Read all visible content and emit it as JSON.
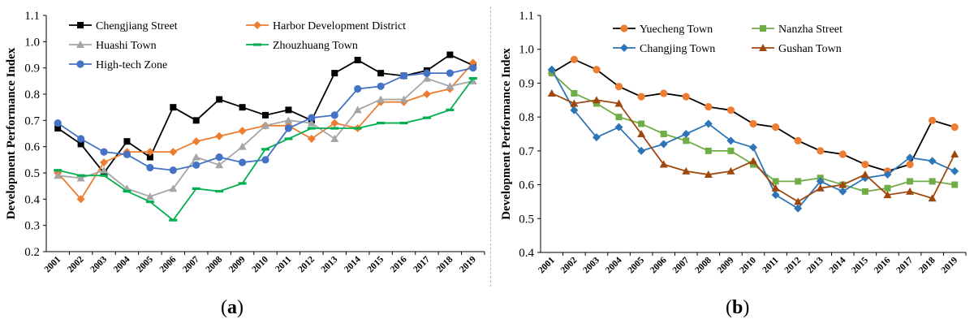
{
  "chart_data": [
    {
      "type": "line",
      "ylabel": "Development Performance Index",
      "ylim": [
        0.2,
        1.1
      ],
      "ystep": 0.1,
      "categories": [
        "2001",
        "2002",
        "2003",
        "2004",
        "2005",
        "2006",
        "2007",
        "2008",
        "2009",
        "2010",
        "2011",
        "2012",
        "2013",
        "2014",
        "2015",
        "2016",
        "2017",
        "2018",
        "2019"
      ],
      "legend_placement": "top-left, two columns",
      "series": [
        {
          "name": "Chengjiang Street",
          "color": "#000000",
          "marker": "square",
          "values": [
            0.67,
            0.61,
            0.5,
            0.62,
            0.56,
            0.75,
            0.7,
            0.78,
            0.75,
            0.72,
            0.74,
            0.7,
            0.88,
            0.93,
            0.88,
            0.87,
            0.89,
            0.95,
            0.91
          ]
        },
        {
          "name": "Harbor Development District",
          "color": "#ED7D31",
          "marker": "diamond",
          "values": [
            0.5,
            0.4,
            0.54,
            0.58,
            0.58,
            0.58,
            0.62,
            0.64,
            0.66,
            0.68,
            0.68,
            0.63,
            0.69,
            0.67,
            0.77,
            0.77,
            0.8,
            0.82,
            0.92
          ]
        },
        {
          "name": "Huashi Town",
          "color": "#A5A5A5",
          "marker": "triangle",
          "values": [
            0.49,
            0.48,
            0.51,
            0.44,
            0.41,
            0.44,
            0.56,
            0.53,
            0.6,
            0.68,
            0.7,
            0.69,
            0.63,
            0.74,
            0.78,
            0.78,
            0.86,
            0.83,
            0.85
          ]
        },
        {
          "name": "Zhouzhuang Town",
          "color": "#00B050",
          "marker": "dash",
          "values": [
            0.51,
            0.49,
            0.49,
            0.43,
            0.39,
            0.32,
            0.44,
            0.43,
            0.46,
            0.59,
            0.63,
            0.67,
            0.67,
            0.67,
            0.69,
            0.69,
            0.71,
            0.74,
            0.86
          ]
        },
        {
          "name": "High-tech Zone",
          "color": "#4472C4",
          "marker": "circle",
          "values": [
            0.69,
            0.63,
            0.58,
            0.57,
            0.52,
            0.51,
            0.53,
            0.56,
            0.54,
            0.55,
            0.67,
            0.71,
            0.72,
            0.82,
            0.83,
            0.87,
            0.88,
            0.88,
            0.9
          ]
        }
      ]
    },
    {
      "type": "line",
      "ylabel": "Development Performance Index",
      "ylim": [
        0.4,
        1.1
      ],
      "ystep": 0.1,
      "categories": [
        "2001",
        "2002",
        "2003",
        "2004",
        "2005",
        "2006",
        "2007",
        "2008",
        "2009",
        "2010",
        "2011",
        "2012",
        "2013",
        "2014",
        "2015",
        "2016",
        "2017",
        "2018",
        "2019"
      ],
      "legend_placement": "top-center, two columns",
      "series": [
        {
          "name": "Yuecheng Town",
          "color": "#ED7D31",
          "line": "#000000",
          "marker": "circle",
          "values": [
            0.93,
            0.97,
            0.94,
            0.89,
            0.86,
            0.87,
            0.86,
            0.83,
            0.82,
            0.78,
            0.77,
            0.73,
            0.7,
            0.69,
            0.66,
            0.64,
            0.66,
            0.79,
            0.77
          ]
        },
        {
          "name": "Nanzha Street",
          "color": "#70AD47",
          "marker": "square",
          "values": [
            0.93,
            0.87,
            0.84,
            0.8,
            0.78,
            0.75,
            0.73,
            0.7,
            0.7,
            0.66,
            0.61,
            0.61,
            0.62,
            0.6,
            0.58,
            0.59,
            0.61,
            0.61,
            0.6
          ]
        },
        {
          "name": "Changjing Town",
          "color": "#2E75B6",
          "marker": "diamond",
          "values": [
            0.94,
            0.82,
            0.74,
            0.77,
            0.7,
            0.72,
            0.75,
            0.78,
            0.73,
            0.71,
            0.57,
            0.53,
            0.61,
            0.58,
            0.62,
            0.63,
            0.68,
            0.67,
            0.64
          ]
        },
        {
          "name": "Gushan Town",
          "color": "#9E480E",
          "marker": "triangle",
          "values": [
            0.87,
            0.84,
            0.85,
            0.84,
            0.75,
            0.66,
            0.64,
            0.63,
            0.64,
            0.67,
            0.59,
            0.55,
            0.59,
            0.6,
            0.63,
            0.57,
            0.58,
            0.56,
            0.69
          ]
        }
      ]
    }
  ],
  "captions": {
    "a": "a",
    "b": "b"
  }
}
